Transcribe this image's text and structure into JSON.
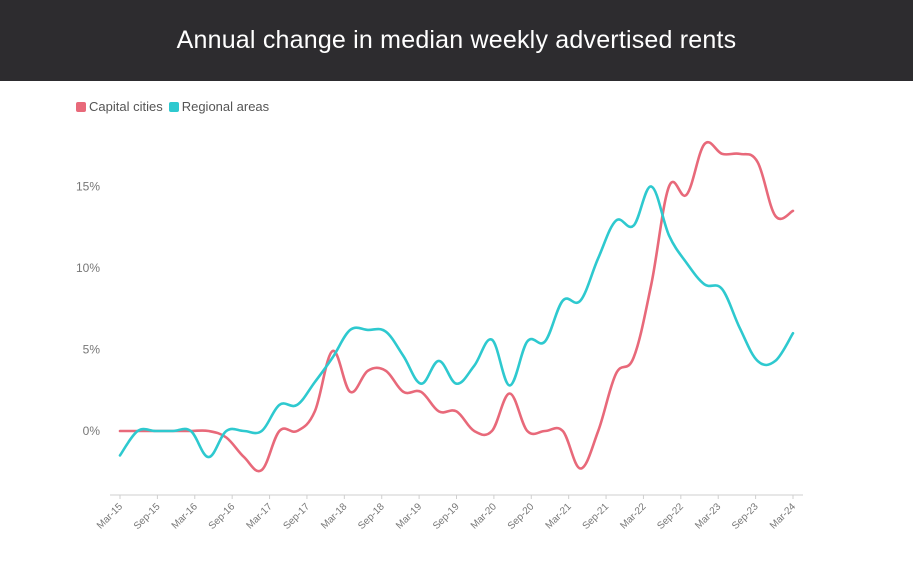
{
  "title": "Annual change in median weekly advertised rents",
  "chart_data": {
    "type": "line",
    "title": "Annual change in median weekly advertised rents",
    "xlabel": "",
    "ylabel": "",
    "x_tick_labels": [
      "Mar-15",
      "Sep-15",
      "Mar-16",
      "Sep-16",
      "Mar-17",
      "Sep-17",
      "Mar-18",
      "Sep-18",
      "Mar-19",
      "Sep-19",
      "Mar-20",
      "Sep-20",
      "Mar-21",
      "Sep-21",
      "Mar-22",
      "Sep-22",
      "Mar-23",
      "Sep-23",
      "Mar-24"
    ],
    "y_ticks": [
      0,
      5,
      10,
      15
    ],
    "y_tick_labels": [
      "0%",
      "5%",
      "10%",
      "15%"
    ],
    "ylim": [
      -4,
      18
    ],
    "grid": false,
    "legend_position": "top-left",
    "series": [
      {
        "name": "Capital cities",
        "color": "#e8697a",
        "values": [
          0,
          0,
          0,
          0,
          0,
          0,
          -0.4,
          -1.6,
          -2.4,
          0,
          0,
          1.2,
          4.9,
          2.4,
          3.7,
          3.7,
          2.4,
          2.4,
          1.2,
          1.2,
          0,
          0,
          2.3,
          0,
          0,
          0,
          -2.3,
          0,
          3.5,
          4.5,
          9,
          15,
          14.5,
          17.6,
          17,
          17,
          16.5,
          13.2,
          13.5
        ]
      },
      {
        "name": "Regional areas",
        "color": "#2ec9cf",
        "values": [
          -1.5,
          0,
          0,
          0,
          0,
          -1.6,
          0,
          0,
          0,
          1.6,
          1.6,
          3,
          4.5,
          6.2,
          6.2,
          6.1,
          4.6,
          2.9,
          4.3,
          2.9,
          4,
          5.6,
          2.8,
          5.5,
          5.5,
          8,
          8,
          10.6,
          12.9,
          12.6,
          15,
          12,
          10.3,
          9,
          8.7,
          6.3,
          4.3,
          4.3,
          6
        ]
      }
    ]
  }
}
